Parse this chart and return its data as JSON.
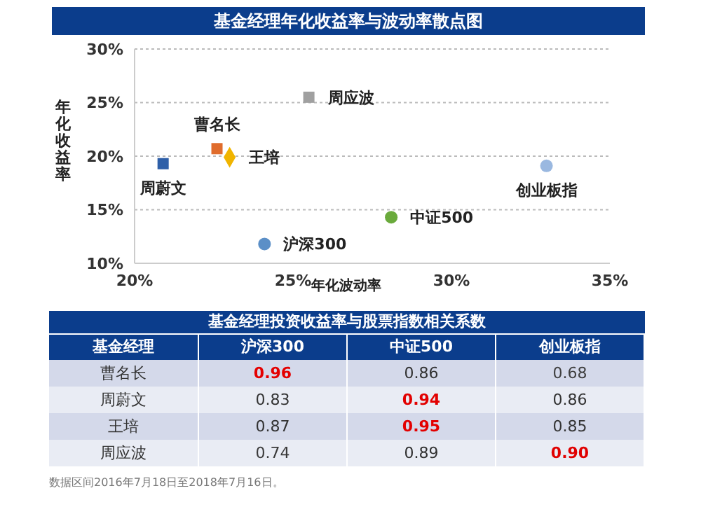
{
  "chart_data": [
    {
      "type": "scatter",
      "title": "基金经理年化收益率与波动率散点图",
      "xlabel": "年化波动率",
      "ylabel": "年化收益率",
      "xlim": [
        20,
        35
      ],
      "xticks": [
        {
          "value": 20,
          "label": "20%"
        },
        {
          "value": 25,
          "label": "25%"
        },
        {
          "value": 30,
          "label": "30%"
        },
        {
          "value": 35,
          "label": "35%"
        }
      ],
      "ylim": [
        10,
        30
      ],
      "yticks": [
        {
          "value": 10,
          "label": "10%"
        },
        {
          "value": 15,
          "label": "15%"
        },
        {
          "value": 20,
          "label": "20%"
        },
        {
          "value": 25,
          "label": "25%"
        },
        {
          "value": 30,
          "label": "30%"
        }
      ],
      "grid": "y",
      "legend": false,
      "series": [
        {
          "name": "周蔚文",
          "color": "#2e5fa8",
          "marker": "square",
          "x": [
            20.9
          ],
          "values": [
            19.3
          ]
        },
        {
          "name": "曹名长",
          "color": "#e06c2c",
          "marker": "square",
          "x": [
            22.6
          ],
          "values": [
            20.7
          ]
        },
        {
          "name": "王培",
          "color": "#f0b400",
          "marker": "diamond",
          "x": [
            23.0
          ],
          "values": [
            19.9
          ]
        },
        {
          "name": "周应波",
          "color": "#a0a0a0",
          "marker": "square",
          "x": [
            25.5
          ],
          "values": [
            25.5
          ]
        },
        {
          "name": "沪深300",
          "color": "#5b8fc7",
          "marker": "circle",
          "x": [
            24.1
          ],
          "values": [
            11.8
          ]
        },
        {
          "name": "中证500",
          "color": "#6aaa3c",
          "marker": "circle",
          "x": [
            28.1
          ],
          "values": [
            14.3
          ]
        },
        {
          "name": "创业板指",
          "color": "#9ab8e0",
          "marker": "circle",
          "x": [
            33.0
          ],
          "values": [
            19.1
          ]
        }
      ]
    },
    {
      "type": "heatmap",
      "title": "基金经理投资收益率与股票指数相关系数",
      "ylabel": "基金经理",
      "categories": [
        "沪深300",
        "中证500",
        "创业板指"
      ],
      "y_categories": [
        "曹名长",
        "周蔚文",
        "王培",
        "周应波"
      ],
      "cells": [
        [
          0.96,
          0.86,
          0.68
        ],
        [
          0.83,
          0.94,
          0.86
        ],
        [
          0.87,
          0.95,
          0.85
        ],
        [
          0.74,
          0.89,
          0.9
        ]
      ],
      "data_labels": true,
      "cell_labels": [
        [
          "0.96",
          "0.86",
          "0.68"
        ],
        [
          "0.83",
          "0.94",
          "0.86"
        ],
        [
          "0.87",
          "0.95",
          "0.85"
        ],
        [
          "0.74",
          "0.89",
          "0.90"
        ]
      ],
      "annotations": [
        "数据区间2016年7月18日至2018年7月16日。"
      ]
    }
  ]
}
